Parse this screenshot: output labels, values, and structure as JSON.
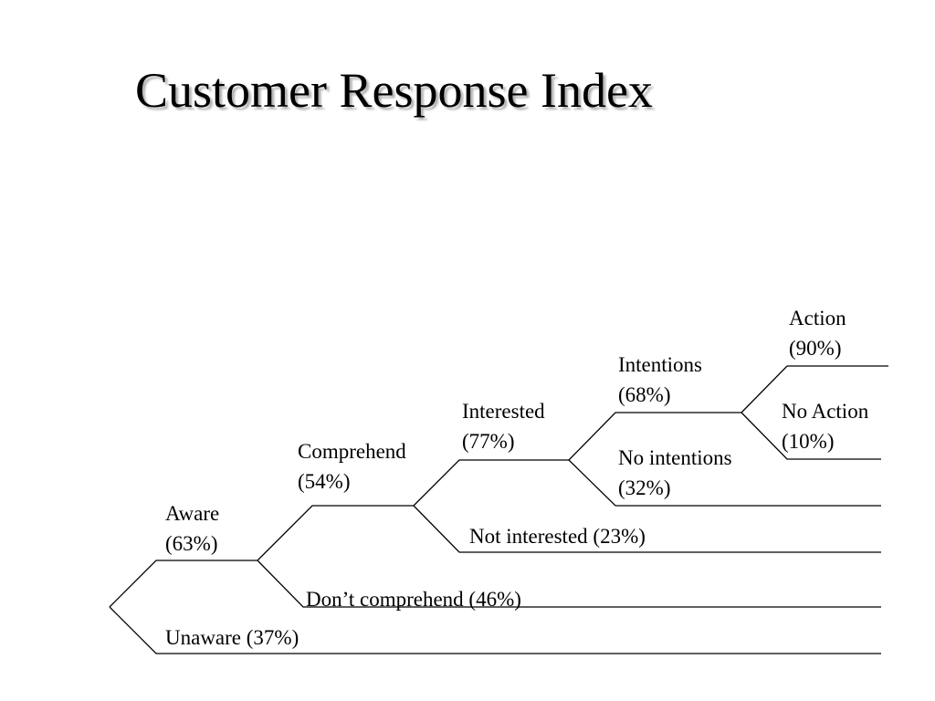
{
  "title": "Customer Response Index",
  "nodes": {
    "aware": {
      "name": "Aware",
      "value": "(63%)"
    },
    "unaware": {
      "label": "Unaware (37%)"
    },
    "comprehend": {
      "name": "Comprehend",
      "value": "(54%)"
    },
    "dont_comprehend": {
      "label": "Don’t comprehend (46%)"
    },
    "interested": {
      "name": "Interested",
      "value": "(77%)"
    },
    "not_interested": {
      "label": "Not interested (23%)"
    },
    "intentions": {
      "name": "Intentions",
      "value": "(68%)"
    },
    "no_intentions": {
      "name": "No intentions",
      "value": "(32%)"
    },
    "action": {
      "name": "Action",
      "value": "(90%)"
    },
    "no_action": {
      "name": "No Action",
      "value": "(10%)"
    }
  },
  "colors": {
    "line": "#000000",
    "text": "#000000",
    "title_shadow": "#b3b3b3"
  }
}
